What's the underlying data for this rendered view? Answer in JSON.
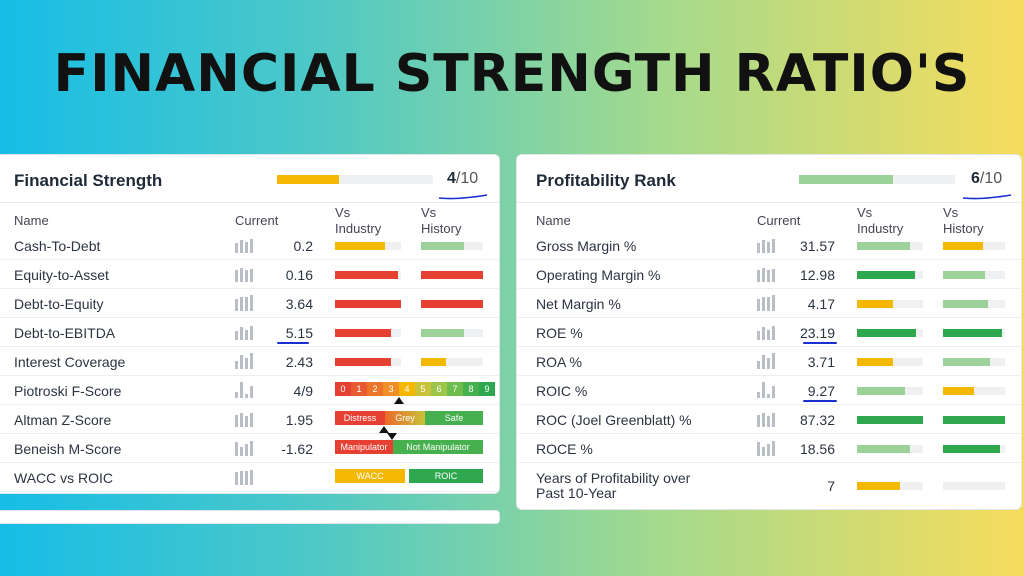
{
  "headline": "FINANCIAL STRENGTH RATIO'S",
  "colors": {
    "red": "#e64033",
    "orange": "#f5b800",
    "lightgreen": "#9cd19a",
    "green": "#2fa74e",
    "track": "#eef0f2"
  },
  "left_panel": {
    "title": "Financial Strength",
    "score_num": "4",
    "score_den": "/10",
    "score_fraction": 0.4,
    "score_color": "#f5b800",
    "cols": {
      "name": "Name",
      "current": "Current",
      "vs_industry_1": "Vs",
      "vs_industry_2": "Industry",
      "vs_history_1": "Vs",
      "vs_history_2": "History"
    },
    "rows": [
      {
        "name": "Cash-To-Debt",
        "current": "0.2",
        "industry": {
          "value": 0.75,
          "color": "#f5b800"
        },
        "history": {
          "value": 0.7,
          "color": "#9cd19a"
        }
      },
      {
        "name": "Equity-to-Asset",
        "current": "0.16",
        "industry": {
          "value": 0.95,
          "color": "#e64033"
        },
        "history": {
          "value": 1.0,
          "color": "#e64033"
        }
      },
      {
        "name": "Debt-to-Equity",
        "current": "3.64",
        "industry": {
          "value": 1.0,
          "color": "#e64033"
        },
        "history": {
          "value": 1.0,
          "color": "#e64033"
        }
      },
      {
        "name": "Debt-to-EBITDA",
        "current": "5.15",
        "industry": {
          "value": 0.85,
          "color": "#e64033"
        },
        "history": {
          "value": 0.7,
          "color": "#9cd19a"
        }
      },
      {
        "name": "Interest Coverage",
        "current": "2.43",
        "industry": {
          "value": 0.85,
          "color": "#e64033"
        },
        "history": {
          "value": 0.4,
          "color": "#f5b800"
        }
      },
      {
        "name": "Piotroski F-Score",
        "current": "4/9"
      },
      {
        "name": "Altman Z-Score",
        "current": "1.95"
      },
      {
        "name": "Beneish M-Score",
        "current": "-1.62"
      },
      {
        "name": "WACC vs ROIC",
        "current": ""
      }
    ],
    "fscore_digits": [
      "0",
      "1",
      "2",
      "3",
      "4",
      "5",
      "6",
      "7",
      "8",
      "9"
    ],
    "altman": {
      "distress": "Distress",
      "grey": "Grey",
      "safe": "Safe"
    },
    "beneish": {
      "manipulator": "Manipulator",
      "not_manipulator": "Not Manipulator"
    },
    "wacc": {
      "wacc": "WACC",
      "roic": "ROIC"
    }
  },
  "right_panel": {
    "title": "Profitability Rank",
    "score_num": "6",
    "score_den": "/10",
    "score_fraction": 0.6,
    "score_color": "#9cd19a",
    "cols": {
      "name": "Name",
      "current": "Current",
      "vs_industry_1": "Vs",
      "vs_industry_2": "Industry",
      "vs_history_1": "Vs",
      "vs_history_2": "History"
    },
    "rows": [
      {
        "name": "Gross Margin %",
        "current": "31.57",
        "industry": {
          "value": 0.8,
          "color": "#9cd19a"
        },
        "history": {
          "value": 0.65,
          "color": "#f5b800"
        }
      },
      {
        "name": "Operating Margin %",
        "current": "12.98",
        "industry": {
          "value": 0.88,
          "color": "#2fa74e"
        },
        "history": {
          "value": 0.68,
          "color": "#9cd19a"
        }
      },
      {
        "name": "Net Margin %",
        "current": "4.17",
        "industry": {
          "value": 0.55,
          "color": "#f5b800"
        },
        "history": {
          "value": 0.72,
          "color": "#9cd19a"
        }
      },
      {
        "name": "ROE %",
        "current": "23.19",
        "industry": {
          "value": 0.9,
          "color": "#2fa74e"
        },
        "history": {
          "value": 0.95,
          "color": "#2fa74e"
        }
      },
      {
        "name": "ROA %",
        "current": "3.71",
        "industry": {
          "value": 0.55,
          "color": "#f5b800"
        },
        "history": {
          "value": 0.75,
          "color": "#9cd19a"
        }
      },
      {
        "name": "ROIC %",
        "current": "9.27",
        "industry": {
          "value": 0.72,
          "color": "#9cd19a"
        },
        "history": {
          "value": 0.5,
          "color": "#f5b800"
        }
      },
      {
        "name": "ROC (Joel Greenblatt) %",
        "current": "87.32",
        "industry": {
          "value": 1.0,
          "color": "#2fa74e"
        },
        "history": {
          "value": 1.0,
          "color": "#2fa74e"
        }
      },
      {
        "name": "ROCE %",
        "current": "18.56",
        "industry": {
          "value": 0.8,
          "color": "#9cd19a"
        },
        "history": {
          "value": 0.92,
          "color": "#2fa74e"
        }
      },
      {
        "name": "Years of Profitability over",
        "name2": "Past 10-Year",
        "current": "7",
        "industry": {
          "value": 0.65,
          "color": "#f5b800"
        },
        "history": {
          "value": 0.0,
          "color": "#9cd19a"
        }
      }
    ]
  }
}
